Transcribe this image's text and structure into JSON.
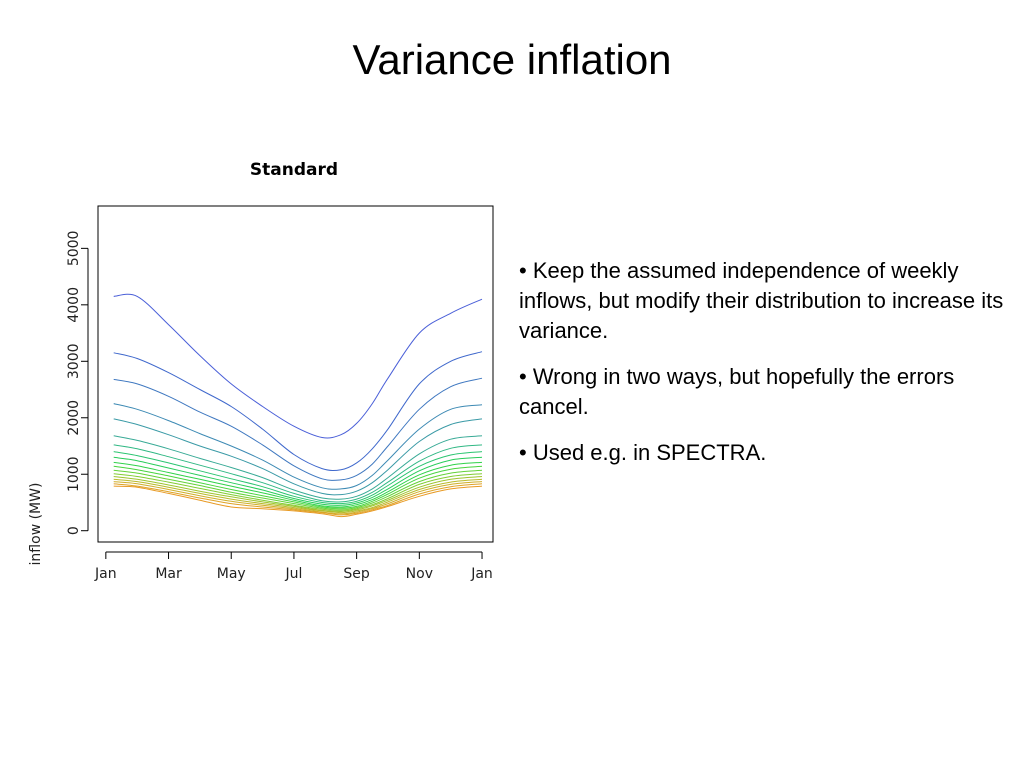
{
  "slide": {
    "title": "Variance inflation",
    "bullets": [
      "• Keep the assumed independence of weekly inflows, but modify their distribution to increase its variance.",
      "• Wrong in two ways, but hopefully the errors cancel.",
      "• Used e.g. in SPECTRA."
    ]
  },
  "chart_data": {
    "type": "line",
    "title": "Standard",
    "xlabel": "",
    "ylabel": "inflow (MW)",
    "x_ticks": [
      "Jan",
      "Mar",
      "May",
      "Jul",
      "Sep",
      "Nov",
      "Jan"
    ],
    "x_tick_months": [
      0,
      2,
      4,
      6,
      8,
      10,
      12
    ],
    "y_ticks": [
      0,
      1000,
      2000,
      3000,
      4000,
      5000
    ],
    "xlim": [
      -0.25,
      12.35
    ],
    "ylim": [
      -200,
      5750
    ],
    "x": [
      0.25,
      1.0,
      2.0,
      3.0,
      4.0,
      5.0,
      6.0,
      6.9,
      7.5,
      8.0,
      8.5,
      9.0,
      10.0,
      11.0,
      12.0
    ],
    "series": [
      {
        "color": "#4a5fd8",
        "values": [
          4150,
          4150,
          3650,
          3100,
          2600,
          2200,
          1850,
          1650,
          1700,
          1900,
          2250,
          2700,
          3500,
          3850,
          4100
        ]
      },
      {
        "color": "#3f68cc",
        "values": [
          3150,
          3050,
          2800,
          2500,
          2200,
          1800,
          1350,
          1100,
          1080,
          1200,
          1450,
          1800,
          2600,
          3000,
          3170
        ]
      },
      {
        "color": "#3f78c0",
        "values": [
          2680,
          2600,
          2380,
          2100,
          1850,
          1520,
          1150,
          920,
          900,
          980,
          1180,
          1500,
          2150,
          2550,
          2700
        ]
      },
      {
        "color": "#3d8ab4",
        "values": [
          2250,
          2150,
          1950,
          1720,
          1500,
          1250,
          950,
          760,
          740,
          800,
          980,
          1250,
          1800,
          2150,
          2230
        ]
      },
      {
        "color": "#3a9aa6",
        "values": [
          1980,
          1880,
          1700,
          1500,
          1320,
          1100,
          830,
          660,
          640,
          700,
          850,
          1080,
          1580,
          1880,
          1980
        ]
      },
      {
        "color": "#38aa96",
        "values": [
          1680,
          1600,
          1450,
          1280,
          1120,
          940,
          720,
          580,
          560,
          610,
          740,
          940,
          1360,
          1620,
          1680
        ]
      },
      {
        "color": "#30b884",
        "values": [
          1520,
          1450,
          1310,
          1160,
          1010,
          850,
          660,
          530,
          510,
          560,
          680,
          860,
          1230,
          1460,
          1520
        ]
      },
      {
        "color": "#2ac470",
        "values": [
          1400,
          1330,
          1200,
          1060,
          920,
          780,
          610,
          500,
          480,
          520,
          630,
          800,
          1140,
          1340,
          1400
        ]
      },
      {
        "color": "#28cc5a",
        "values": [
          1300,
          1240,
          1110,
          980,
          850,
          720,
          570,
          470,
          450,
          490,
          590,
          740,
          1060,
          1250,
          1300
        ]
      },
      {
        "color": "#30d24a",
        "values": [
          1210,
          1150,
          1030,
          910,
          790,
          670,
          540,
          440,
          420,
          460,
          550,
          690,
          990,
          1160,
          1210
        ]
      },
      {
        "color": "#48d43e",
        "values": [
          1140,
          1080,
          970,
          850,
          730,
          620,
          510,
          420,
          400,
          430,
          520,
          650,
          930,
          1090,
          1140
        ]
      },
      {
        "color": "#64d238",
        "values": [
          1070,
          1020,
          910,
          800,
          680,
          580,
          480,
          400,
          380,
          410,
          490,
          610,
          870,
          1020,
          1070
        ]
      },
      {
        "color": "#82cc32",
        "values": [
          1010,
          960,
          860,
          750,
          640,
          540,
          450,
          380,
          360,
          390,
          460,
          570,
          820,
          960,
          1010
        ]
      },
      {
        "color": "#9ec42e",
        "values": [
          960,
          910,
          810,
          700,
          600,
          510,
          430,
          360,
          340,
          370,
          440,
          540,
          770,
          910,
          960
        ]
      },
      {
        "color": "#b8ba2a",
        "values": [
          910,
          870,
          770,
          660,
          560,
          480,
          410,
          350,
          320,
          350,
          410,
          510,
          730,
          860,
          910
        ]
      },
      {
        "color": "#ceae28",
        "values": [
          870,
          830,
          730,
          620,
          520,
          450,
          390,
          330,
          300,
          330,
          390,
          480,
          690,
          820,
          870
        ]
      },
      {
        "color": "#dea226",
        "values": [
          830,
          790,
          690,
          580,
          480,
          420,
          370,
          320,
          280,
          310,
          370,
          450,
          650,
          780,
          830
        ]
      },
      {
        "color": "#e89a24",
        "values": [
          790,
          770,
          660,
          540,
          420,
          390,
          350,
          300,
          250,
          290,
          350,
          430,
          610,
          740,
          790
        ]
      }
    ]
  }
}
